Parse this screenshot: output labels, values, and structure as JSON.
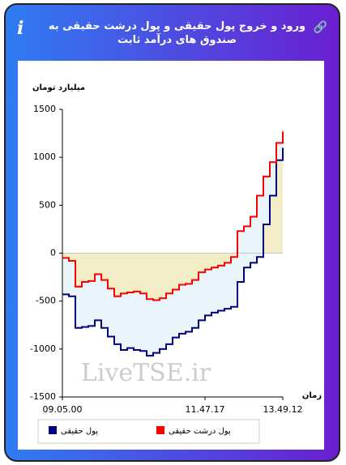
{
  "header": {
    "title": "ورود و خروج پول حقیقی و پول درشت حقیقی به صندوق های درآمد ثابت"
  },
  "chart_data": {
    "type": "step-line",
    "y_label": "میلیارد تومان",
    "x_label": "زمان",
    "watermark": "LiveTSE.ir",
    "categories": [
      "09.05.00",
      null,
      null,
      null,
      null,
      null,
      null,
      null,
      null,
      null,
      null,
      null,
      null,
      null,
      null,
      null,
      null,
      null,
      null,
      null,
      null,
      null,
      "11.47.17",
      null,
      null,
      null,
      null,
      null,
      null,
      null,
      null,
      null,
      null,
      null,
      "13.49.12"
    ],
    "series": [
      {
        "name": "پول حقیقی",
        "color": "#000080",
        "values": [
          -430,
          -450,
          -780,
          -770,
          -760,
          -700,
          -780,
          -870,
          -950,
          -1010,
          -990,
          -1010,
          -1020,
          -1070,
          -1040,
          -1000,
          -950,
          -880,
          -840,
          -820,
          -780,
          -700,
          -650,
          -620,
          -600,
          -580,
          -560,
          -300,
          -150,
          -100,
          -40,
          300,
          600,
          970,
          1100
        ]
      },
      {
        "name": "پول درشت حقیقی",
        "color": "#ff0000",
        "values": [
          -50,
          -80,
          -350,
          -300,
          -290,
          -220,
          -280,
          -370,
          -450,
          -420,
          -410,
          -400,
          -420,
          -480,
          -490,
          -470,
          -420,
          -380,
          -330,
          -320,
          -280,
          -200,
          -170,
          -150,
          -130,
          -100,
          -40,
          230,
          280,
          380,
          600,
          800,
          950,
          1150,
          1270
        ]
      }
    ],
    "ylim": [
      -1500,
      1500
    ],
    "yticks": [
      -1500,
      -1000,
      -500,
      0,
      500,
      1000,
      1500
    ]
  }
}
